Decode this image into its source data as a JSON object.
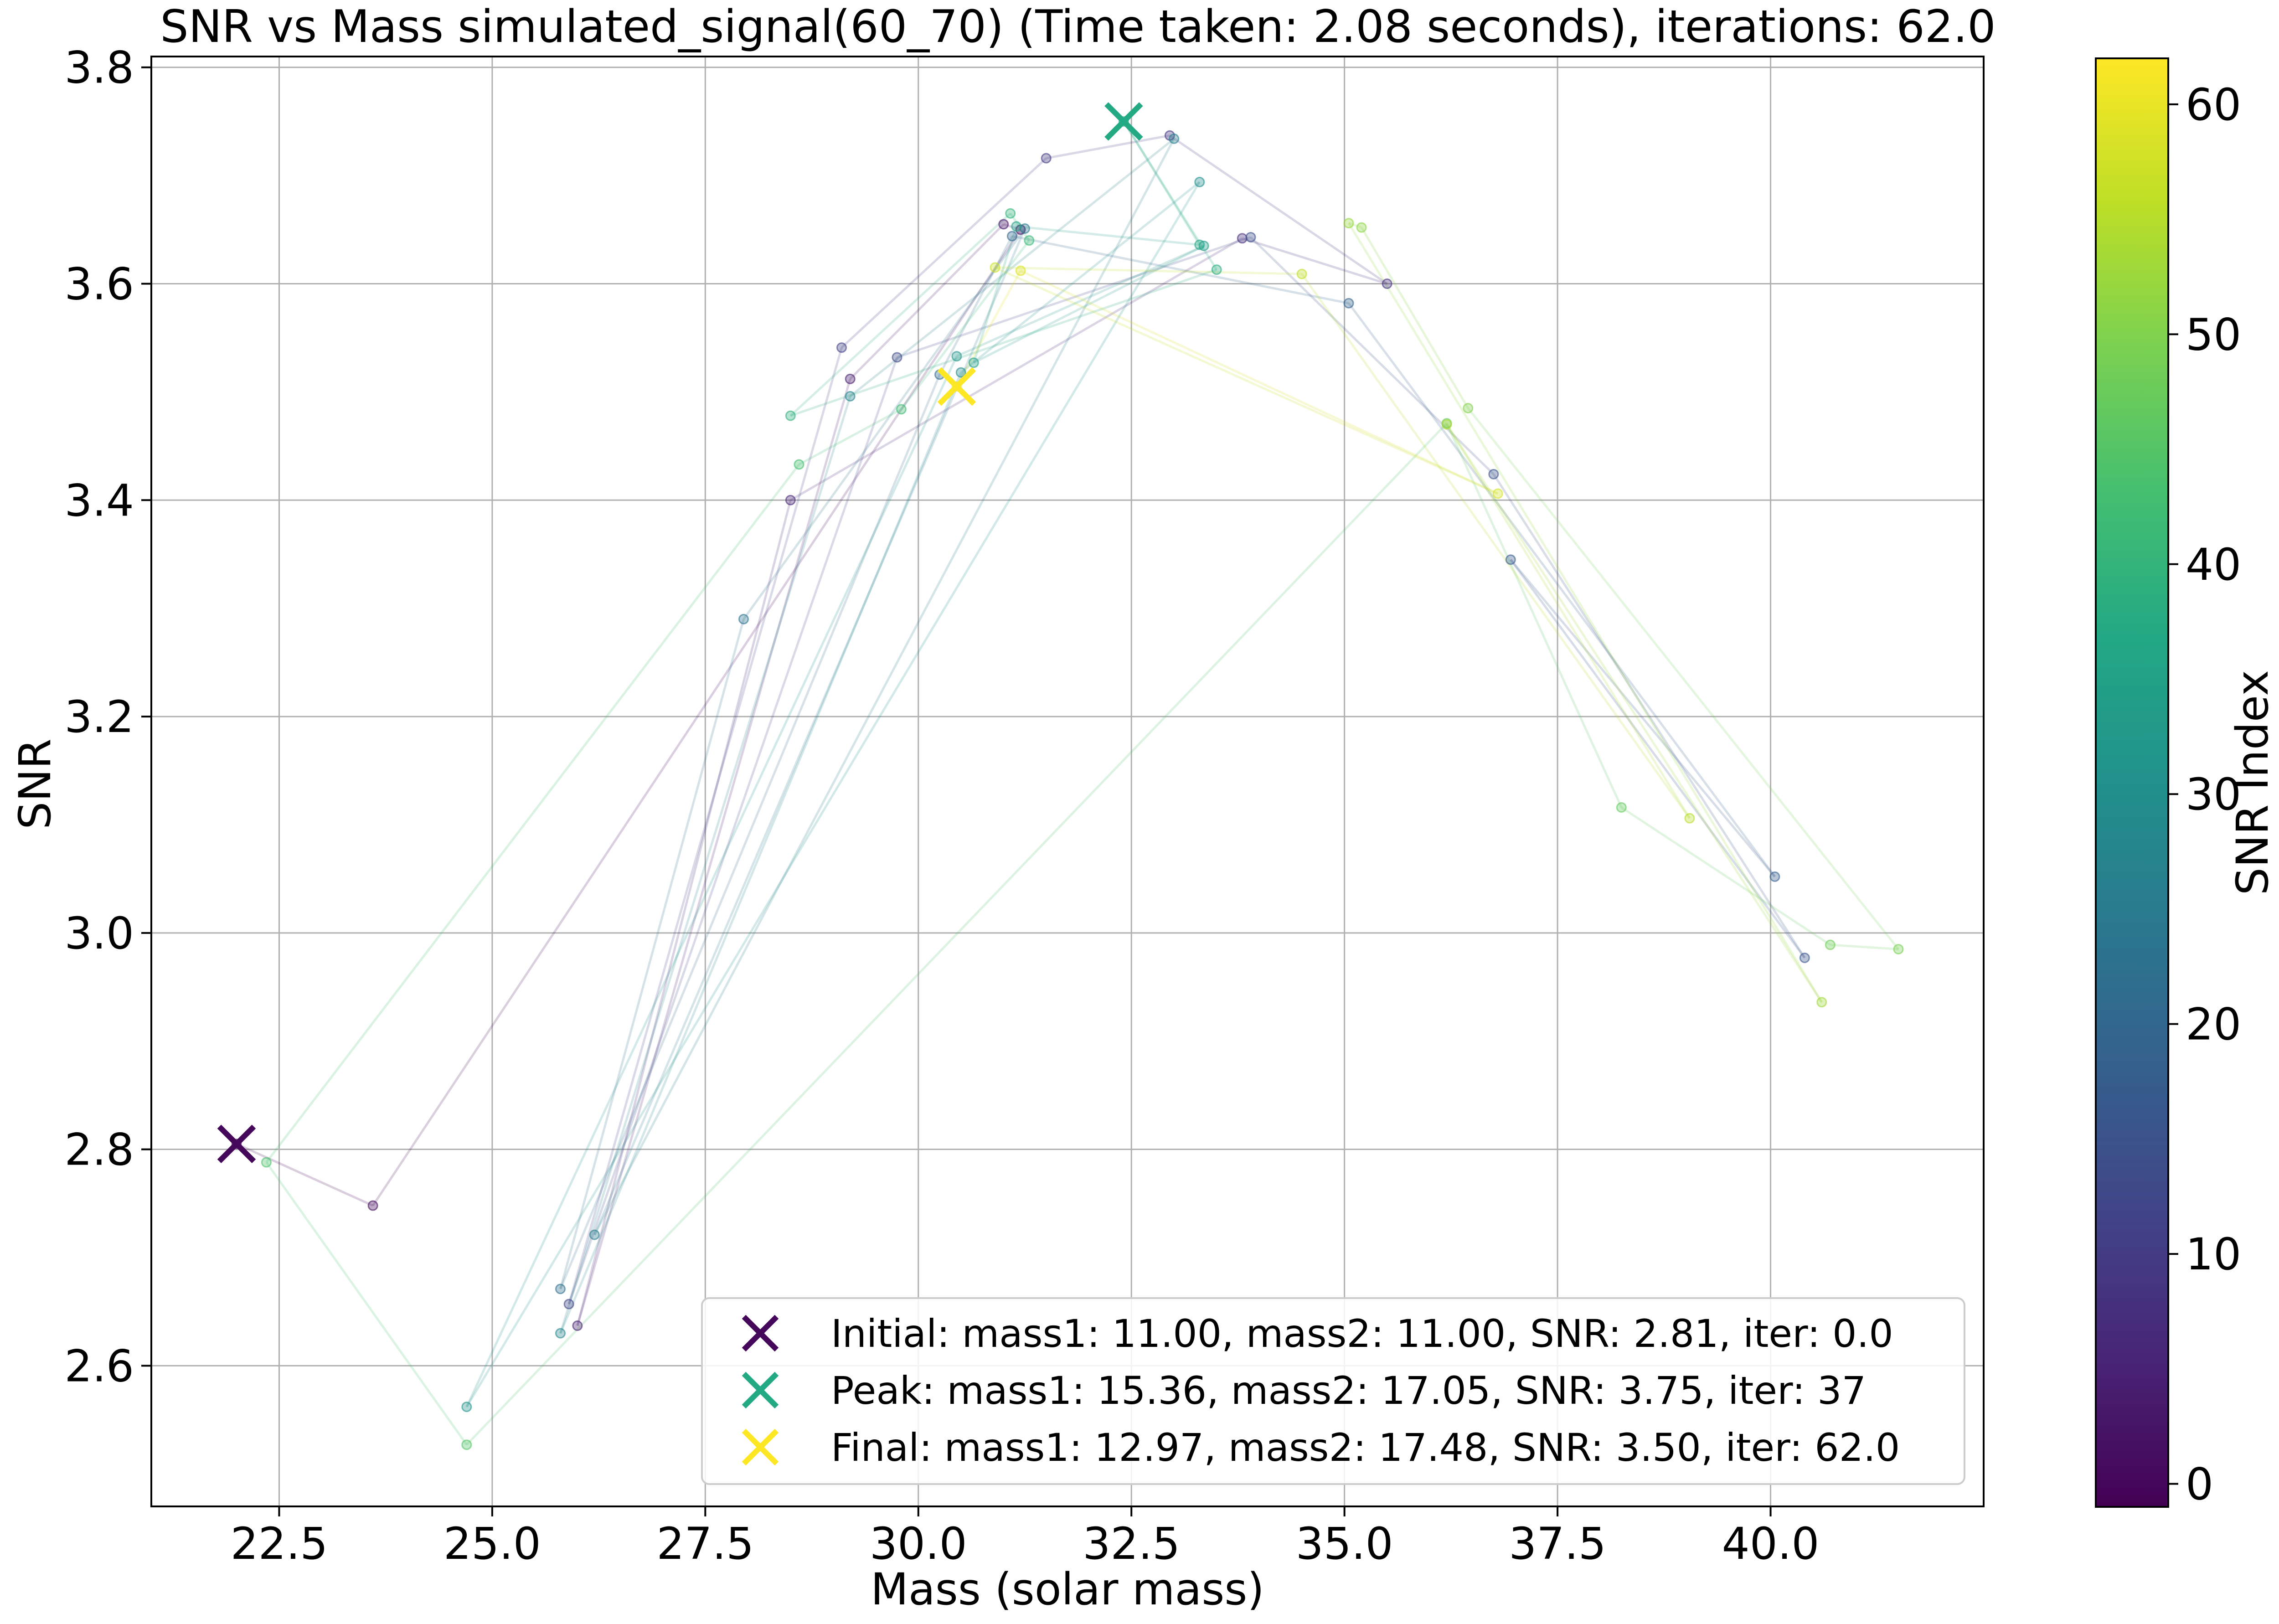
{
  "chart_data": {
    "type": "scatter",
    "title": "SNR vs Mass simulated_signal(60_70) (Time taken: 2.08 seconds), iterations: 62.0",
    "xlabel": "Mass (solar mass)",
    "ylabel": "SNR",
    "xlim": [
      21.0,
      42.5
    ],
    "ylim": [
      2.47,
      3.81
    ],
    "xticks": [
      "22.5",
      "25.0",
      "27.5",
      "30.0",
      "32.5",
      "35.0",
      "37.5",
      "40.0"
    ],
    "yticks": [
      "2.6",
      "2.8",
      "3.0",
      "3.2",
      "3.4",
      "3.6",
      "3.8"
    ],
    "grid": true,
    "colorbar": {
      "label": "SNR Index",
      "colormap": "viridis",
      "range": [
        -1,
        62
      ],
      "ticks": [
        "0",
        "10",
        "20",
        "30",
        "40",
        "50",
        "60"
      ]
    },
    "legend": {
      "position": "lower-right",
      "entries": [
        "Initial: mass1: 11.00, mass2: 11.00, SNR: 2.81, iter: 0.0",
        "Peak: mass1: 15.36, mass2: 17.05, SNR: 3.75, iter: 37",
        "Final: mass1: 12.97, mass2: 17.48, SNR: 3.50, iter: 62.0"
      ]
    },
    "markers": [
      {
        "name": "Initial",
        "x": 22.0,
        "y": 2.805,
        "iter": 0
      },
      {
        "name": "Peak",
        "x": 32.41,
        "y": 3.75,
        "iter": 37
      },
      {
        "name": "Final",
        "x": 30.45,
        "y": 3.505,
        "iter": 62
      }
    ],
    "points": [
      {
        "x": 22.0,
        "y": 2.805,
        "i": 0
      },
      {
        "x": 23.6,
        "y": 2.748,
        "i": 1
      },
      {
        "x": 31.2,
        "y": 3.65,
        "i": 2
      },
      {
        "x": 31.0,
        "y": 3.655,
        "i": 3
      },
      {
        "x": 29.2,
        "y": 3.512,
        "i": 4
      },
      {
        "x": 26.0,
        "y": 2.637,
        "i": 5
      },
      {
        "x": 28.5,
        "y": 3.4,
        "i": 6
      },
      {
        "x": 33.8,
        "y": 3.642,
        "i": 7
      },
      {
        "x": 35.5,
        "y": 3.6,
        "i": 8
      },
      {
        "x": 32.95,
        "y": 3.737,
        "i": 9
      },
      {
        "x": 31.5,
        "y": 3.716,
        "i": 10
      },
      {
        "x": 29.1,
        "y": 3.541,
        "i": 11
      },
      {
        "x": 25.9,
        "y": 2.657,
        "i": 12
      },
      {
        "x": 29.75,
        "y": 3.532,
        "i": 13
      },
      {
        "x": 33.9,
        "y": 3.643,
        "i": 14
      },
      {
        "x": 36.75,
        "y": 3.424,
        "i": 15
      },
      {
        "x": 40.4,
        "y": 2.977,
        "i": 16
      },
      {
        "x": 36.95,
        "y": 3.345,
        "i": 17
      },
      {
        "x": 40.05,
        "y": 3.052,
        "i": 18
      },
      {
        "x": 35.05,
        "y": 3.582,
        "i": 19
      },
      {
        "x": 31.1,
        "y": 3.644,
        "i": 20
      },
      {
        "x": 30.25,
        "y": 3.516,
        "i": 21
      },
      {
        "x": 25.8,
        "y": 2.671,
        "i": 22
      },
      {
        "x": 27.95,
        "y": 3.29,
        "i": 23
      },
      {
        "x": 31.25,
        "y": 3.651,
        "i": 24
      },
      {
        "x": 26.2,
        "y": 2.721,
        "i": 25
      },
      {
        "x": 33.0,
        "y": 3.734,
        "i": 26
      },
      {
        "x": 29.2,
        "y": 3.496,
        "i": 27
      },
      {
        "x": 25.8,
        "y": 2.63,
        "i": 28
      },
      {
        "x": 30.5,
        "y": 3.518,
        "i": 29
      },
      {
        "x": 33.3,
        "y": 3.694,
        "i": 30
      },
      {
        "x": 24.7,
        "y": 2.562,
        "i": 31
      },
      {
        "x": 30.45,
        "y": 3.533,
        "i": 32
      },
      {
        "x": 33.35,
        "y": 3.635,
        "i": 33
      },
      {
        "x": 30.65,
        "y": 3.527,
        "i": 34
      },
      {
        "x": 31.15,
        "y": 3.653,
        "i": 35
      },
      {
        "x": 33.3,
        "y": 3.636,
        "i": 36
      },
      {
        "x": 32.41,
        "y": 3.75,
        "i": 37
      },
      {
        "x": 33.5,
        "y": 3.613,
        "i": 38
      },
      {
        "x": 28.5,
        "y": 3.478,
        "i": 39
      },
      {
        "x": 31.08,
        "y": 3.665,
        "i": 40
      },
      {
        "x": 31.3,
        "y": 3.64,
        "i": 41
      },
      {
        "x": 29.8,
        "y": 3.484,
        "i": 42
      },
      {
        "x": 28.6,
        "y": 3.433,
        "i": 43
      },
      {
        "x": 22.35,
        "y": 2.788,
        "i": 44
      },
      {
        "x": 24.7,
        "y": 2.527,
        "i": 45
      },
      {
        "x": 36.2,
        "y": 3.471,
        "i": 46
      },
      {
        "x": 38.25,
        "y": 3.116,
        "i": 47
      },
      {
        "x": 40.7,
        "y": 2.989,
        "i": 48
      },
      {
        "x": 41.5,
        "y": 2.985,
        "i": 49
      },
      {
        "x": 36.45,
        "y": 3.485,
        "i": 50
      },
      {
        "x": 35.2,
        "y": 3.652,
        "i": 51
      },
      {
        "x": 35.05,
        "y": 3.656,
        "i": 52
      },
      {
        "x": 40.6,
        "y": 2.936,
        "i": 53
      },
      {
        "x": 36.2,
        "y": 3.47,
        "i": 54
      },
      {
        "x": 39.05,
        "y": 3.106,
        "i": 55
      },
      {
        "x": 34.5,
        "y": 3.609,
        "i": 56
      },
      {
        "x": 30.9,
        "y": 3.615,
        "i": 57
      },
      {
        "x": 36.8,
        "y": 3.406,
        "i": 58
      },
      {
        "x": 31.2,
        "y": 3.612,
        "i": 59
      },
      {
        "x": 30.45,
        "y": 3.505,
        "i": 60
      }
    ]
  }
}
